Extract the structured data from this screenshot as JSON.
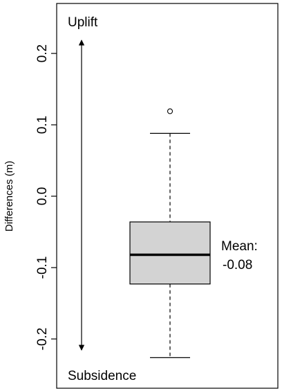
{
  "chart_data": {
    "type": "box",
    "y_label": "Differences (m)",
    "ylim": [
      -0.269,
      0.27
    ],
    "yticks": [
      0.2,
      0.1,
      {
        "value": 0,
        "label": "0.0"
      },
      -0.1,
      -0.2
    ],
    "color": "#d3d3d3",
    "boxes": [
      {
        "whisker_low": -0.226,
        "q1": -0.123,
        "median": -0.082,
        "q3": -0.036,
        "whisker_high": 0.088,
        "outliers": [
          0.119
        ]
      }
    ],
    "annotations": {
      "top": "Uplift",
      "bottom": "Subsidence",
      "mean_label": "Mean:",
      "mean_value": -0.08
    }
  }
}
